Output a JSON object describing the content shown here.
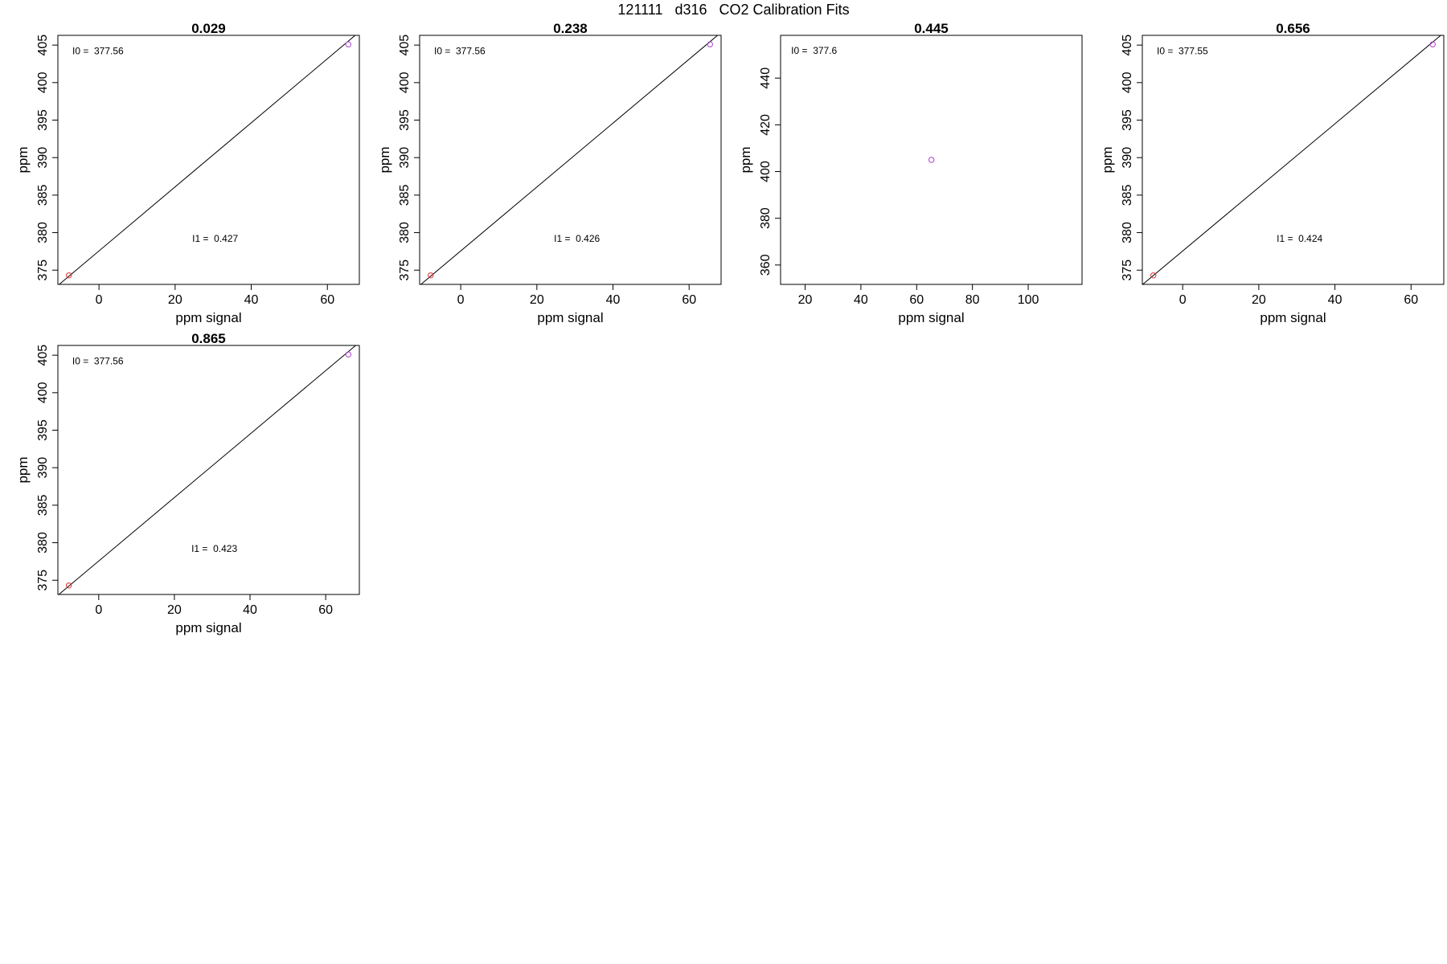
{
  "figure": {
    "title": "121111   d316   CO2 Calibration Fits"
  },
  "chart_data": [
    {
      "type": "scatter",
      "title": "0.029",
      "xlabel": "ppm signal",
      "ylabel": "ppm",
      "xlim": [
        -10.8,
        68.4
      ],
      "ylim": [
        373.1,
        406.3
      ],
      "xticks": [
        0,
        20,
        40,
        60
      ],
      "yticks": [
        375,
        380,
        385,
        390,
        395,
        400,
        405
      ],
      "grid": false,
      "points": [
        {
          "x": -7.9,
          "y": 374.3,
          "color": "#e03030"
        },
        {
          "x": 65.5,
          "y": 405.1,
          "color": "#b040d0"
        }
      ],
      "fit_line": {
        "intercept": 377.56,
        "slope": 0.427
      },
      "annotations": [
        {
          "text": "I0 =  377.56",
          "x": -7.0,
          "y": 404.1
        },
        {
          "text": "I1 =  0.427",
          "x": 24.5,
          "y": 379.1
        }
      ]
    },
    {
      "type": "scatter",
      "title": "0.238",
      "xlabel": "ppm signal",
      "ylabel": "ppm",
      "xlim": [
        -10.8,
        68.4
      ],
      "ylim": [
        373.1,
        406.3
      ],
      "xticks": [
        0,
        20,
        40,
        60
      ],
      "yticks": [
        375,
        380,
        385,
        390,
        395,
        400,
        405
      ],
      "grid": false,
      "points": [
        {
          "x": -7.9,
          "y": 374.3,
          "color": "#e03030"
        },
        {
          "x": 65.5,
          "y": 405.1,
          "color": "#b040d0"
        }
      ],
      "fit_line": {
        "intercept": 377.56,
        "slope": 0.426
      },
      "annotations": [
        {
          "text": "I0 =  377.56",
          "x": -7.0,
          "y": 404.1
        },
        {
          "text": "I1 =  0.426",
          "x": 24.5,
          "y": 379.1
        }
      ]
    },
    {
      "type": "scatter",
      "title": "0.445",
      "xlabel": "ppm signal",
      "ylabel": "ppm",
      "xlim": [
        11.2,
        119.3
      ],
      "ylim": [
        351.7,
        458.3
      ],
      "xticks": [
        20,
        40,
        60,
        80,
        100
      ],
      "yticks": [
        360,
        380,
        400,
        420,
        440
      ],
      "grid": false,
      "points": [
        {
          "x": 65.3,
          "y": 405.0,
          "color": "#b040d0"
        }
      ],
      "fit_line": null,
      "annotations": [
        {
          "text": "I0 =  377.6",
          "x": 15.0,
          "y": 451.5
        }
      ]
    },
    {
      "type": "scatter",
      "title": "0.656",
      "xlabel": "ppm signal",
      "ylabel": "ppm",
      "xlim": [
        -10.6,
        68.6
      ],
      "ylim": [
        373.1,
        406.3
      ],
      "xticks": [
        0,
        20,
        40,
        60
      ],
      "yticks": [
        375,
        380,
        385,
        390,
        395,
        400,
        405
      ],
      "grid": false,
      "points": [
        {
          "x": -7.7,
          "y": 374.3,
          "color": "#e03030"
        },
        {
          "x": 65.7,
          "y": 405.1,
          "color": "#b040d0"
        }
      ],
      "fit_line": {
        "intercept": 377.55,
        "slope": 0.424
      },
      "annotations": [
        {
          "text": "I0 =  377.55",
          "x": -6.8,
          "y": 404.1
        },
        {
          "text": "I1 =  0.424",
          "x": 24.7,
          "y": 379.1
        }
      ]
    },
    {
      "type": "scatter",
      "title": "0.865",
      "xlabel": "ppm signal",
      "ylabel": "ppm",
      "xlim": [
        -10.8,
        68.9
      ],
      "ylim": [
        373.1,
        406.3
      ],
      "xticks": [
        0,
        20,
        40,
        60
      ],
      "yticks": [
        375,
        380,
        385,
        390,
        395,
        400,
        405
      ],
      "grid": false,
      "points": [
        {
          "x": -7.9,
          "y": 374.3,
          "color": "#e03030"
        },
        {
          "x": 66.0,
          "y": 405.1,
          "color": "#b040d0"
        }
      ],
      "fit_line": {
        "intercept": 377.56,
        "slope": 0.423
      },
      "annotations": [
        {
          "text": "I0 =  377.56",
          "x": -7.0,
          "y": 404.1
        },
        {
          "text": "I1 =  0.423",
          "x": 24.5,
          "y": 379.1
        }
      ]
    }
  ]
}
